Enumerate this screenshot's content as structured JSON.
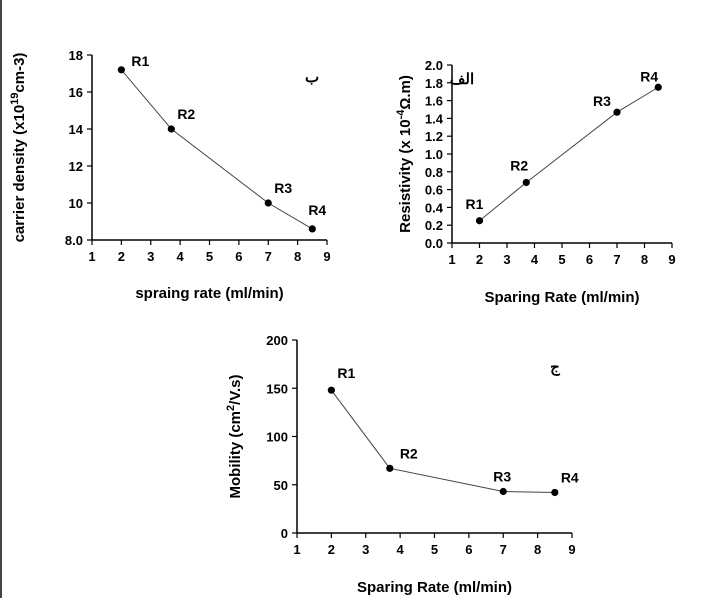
{
  "colors": {
    "line": "#444444",
    "marker": "#000000",
    "axis": "#000000",
    "text": "#000000"
  },
  "chart_data": [
    {
      "id": "carrier",
      "type": "line",
      "panel_letter": "ب",
      "x": [
        2.0,
        3.7,
        7.0,
        8.5
      ],
      "series": [
        {
          "values": [
            17.2,
            14.0,
            10.0,
            8.6
          ]
        }
      ],
      "point_labels": [
        "R1",
        "R2",
        "R3",
        "R4"
      ],
      "xlabel": "spraing rate (ml/min)",
      "ylabel_parts": {
        "pre": "carrier density (x10",
        "sup": "19",
        "post": "cm-3)"
      },
      "xlim": [
        1,
        9
      ],
      "ylim": [
        8.0,
        18
      ],
      "xticks": [
        1,
        2,
        3,
        4,
        5,
        6,
        7,
        8,
        9
      ],
      "yticks": [
        8.0,
        10,
        12,
        14,
        16,
        18
      ],
      "ytick_labels": [
        "8.0",
        "10",
        "12",
        "14",
        "16",
        "18"
      ]
    },
    {
      "id": "resistivity",
      "type": "line",
      "panel_letter": "الف",
      "x": [
        2.0,
        3.7,
        7.0,
        8.5
      ],
      "series": [
        {
          "values": [
            0.25,
            0.68,
            1.47,
            1.75
          ]
        }
      ],
      "point_labels": [
        "R1",
        "R2",
        "R3",
        "R4"
      ],
      "xlabel": "Sparing Rate (ml/min)",
      "ylabel_parts": {
        "pre": "Resistivity (x 10",
        "sup": "-4",
        "post": "Ω.m)"
      },
      "xlim": [
        1,
        9
      ],
      "ylim": [
        0,
        2.0
      ],
      "xticks": [
        1,
        2,
        3,
        4,
        5,
        6,
        7,
        8,
        9
      ],
      "yticks": [
        0,
        0.2,
        0.4,
        0.6,
        0.8,
        1.0,
        1.2,
        1.4,
        1.6,
        1.8,
        2.0
      ],
      "ytick_labels": [
        "0.0",
        "0.2",
        "0.4",
        "0.6",
        "0.8",
        "1.0",
        "1.2",
        "1.4",
        "1.6",
        "1.8",
        "2.0"
      ]
    },
    {
      "id": "mobility",
      "type": "line",
      "panel_letter": "ج",
      "x": [
        2.0,
        3.7,
        7.0,
        8.5
      ],
      "series": [
        {
          "values": [
            148,
            67,
            43,
            42
          ]
        }
      ],
      "point_labels": [
        "R1",
        "R2",
        "R3",
        "R4"
      ],
      "xlabel": "Sparing Rate (ml/min)",
      "ylabel_parts": {
        "pre": "Mobility (cm",
        "sup": "2",
        "post": "/V.s)"
      },
      "xlim": [
        1,
        9
      ],
      "ylim": [
        0,
        200
      ],
      "xticks": [
        1,
        2,
        3,
        4,
        5,
        6,
        7,
        8,
        9
      ],
      "yticks": [
        0,
        50,
        100,
        150,
        200
      ],
      "ytick_labels": [
        "0",
        "50",
        "100",
        "150",
        "200"
      ]
    }
  ]
}
